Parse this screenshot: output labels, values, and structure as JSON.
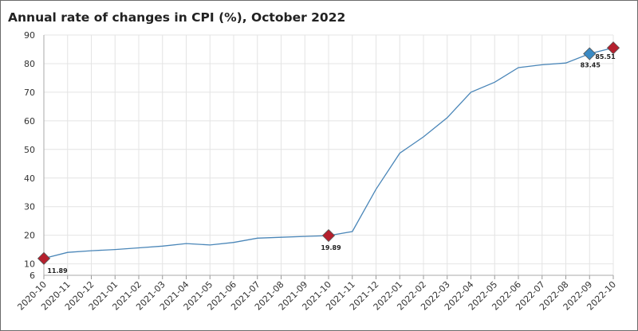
{
  "chart_data": {
    "type": "line",
    "title": "Annual rate of changes in CPI (%), October 2022",
    "xlabel": "",
    "ylabel": "",
    "x": [
      "2020-10",
      "2020-11",
      "2020-12",
      "2021-01",
      "2021-02",
      "2021-03",
      "2021-04",
      "2021-05",
      "2021-06",
      "2021-07",
      "2021-08",
      "2021-09",
      "2021-10",
      "2021-11",
      "2021-12",
      "2022-01",
      "2022-02",
      "2022-03",
      "2022-04",
      "2022-05",
      "2022-06",
      "2022-07",
      "2022-08",
      "2022-09",
      "2022-10"
    ],
    "series": [
      {
        "values": [
          11.89,
          14.0,
          14.6,
          15.0,
          15.6,
          16.2,
          17.1,
          16.6,
          17.5,
          19.0,
          19.3,
          19.6,
          19.89,
          21.3,
          36.1,
          48.7,
          54.4,
          61.1,
          70.0,
          73.5,
          78.6,
          79.6,
          80.2,
          83.45,
          85.51
        ],
        "color": "#4a86b8"
      }
    ],
    "yticks": [
      6,
      10,
      20,
      30,
      40,
      50,
      60,
      70,
      80,
      90
    ],
    "ylim": [
      6,
      90
    ],
    "grid": true,
    "highlights": [
      {
        "index": 0,
        "label": "11.89",
        "color": "#b5202e"
      },
      {
        "index": 12,
        "label": "19.89",
        "color": "#b5202e"
      },
      {
        "index": 23,
        "label": "83.45",
        "color": "#3a8ac4"
      },
      {
        "index": 24,
        "label": "85.51",
        "color": "#b5202e"
      }
    ]
  }
}
